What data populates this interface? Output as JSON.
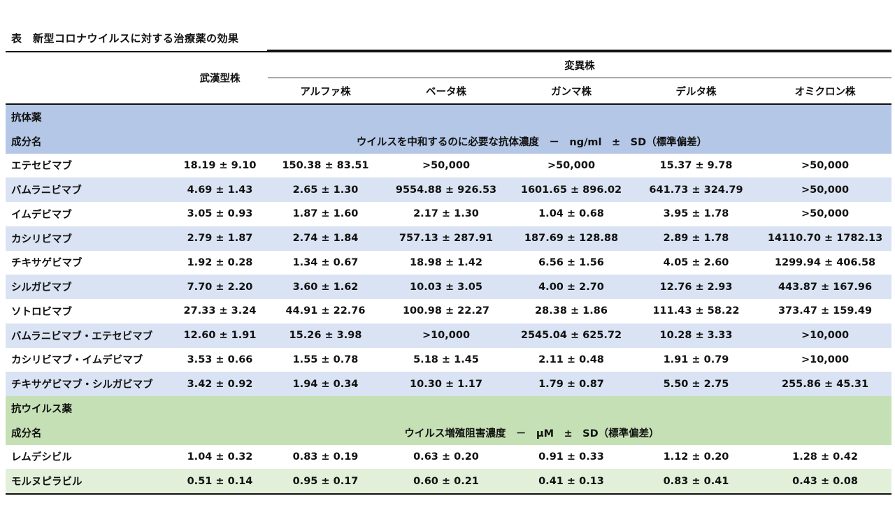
{
  "title": "表　新型コロナウイルスに対する治療薬の効果",
  "header": {
    "wuhan": "武漢型株",
    "variant": "変異株",
    "strains": [
      "アルファ株",
      "ベータ株",
      "ガンマ株",
      "デルタ株",
      "オミクロン株"
    ]
  },
  "antibody": {
    "section_label": "抗体薬",
    "name_label": "成分名",
    "unit_label": "ウイルスを中和するのに必要な抗体濃度　－　ng/ml　±　SD（標準偏差）",
    "rows": [
      {
        "name": "エテセビマブ",
        "values": [
          "18.19 ± 9.10",
          "150.38 ± 83.51",
          ">50,000",
          ">50,000",
          "15.37 ± 9.78",
          ">50,000"
        ]
      },
      {
        "name": "バムラニビマブ",
        "values": [
          "4.69 ± 1.43",
          "2.65 ± 1.30",
          "9554.88 ± 926.53",
          "1601.65 ± 896.02",
          "641.73 ± 324.79",
          ">50,000"
        ]
      },
      {
        "name": "イムデビマブ",
        "values": [
          "3.05 ± 0.93",
          "1.87 ± 1.60",
          "2.17 ± 1.30",
          "1.04 ± 0.68",
          "3.95 ± 1.78",
          ">50,000"
        ]
      },
      {
        "name": "カシリビマブ",
        "values": [
          "2.79 ± 1.87",
          "2.74 ± 1.84",
          "757.13 ± 287.91",
          "187.69 ± 128.88",
          "2.89 ± 1.78",
          "14110.70 ± 1782.13"
        ]
      },
      {
        "name": "チキサゲビマブ",
        "values": [
          "1.92 ± 0.28",
          "1.34 ± 0.67",
          "18.98 ± 1.42",
          "6.56 ± 1.56",
          "4.05 ± 2.60",
          "1299.94 ± 406.58"
        ]
      },
      {
        "name": "シルガビマブ",
        "values": [
          "7.70 ± 2.20",
          "3.60 ± 1.62",
          "10.03 ± 3.05",
          "4.00 ± 2.70",
          "12.76 ± 2.93",
          "443.87 ± 167.96"
        ]
      },
      {
        "name": "ソトロビマブ",
        "values": [
          "27.33 ± 3.24",
          "44.91 ± 22.76",
          "100.98 ± 22.27",
          "28.38 ± 1.86",
          "111.43 ± 58.22",
          "373.47 ± 159.49"
        ]
      },
      {
        "name": "バムラニビマブ・エテセビマブ",
        "values": [
          "12.60 ± 1.91",
          "15.26 ± 3.98",
          ">10,000",
          "2545.04 ± 625.72",
          "10.28 ± 3.33",
          ">10,000"
        ]
      },
      {
        "name": "カシリビマブ・イムデビマブ",
        "values": [
          "3.53 ± 0.66",
          "1.55 ± 0.78",
          "5.18 ± 1.45",
          "2.11 ± 0.48",
          "1.91 ± 0.79",
          ">10,000"
        ]
      },
      {
        "name": "チキサゲビマブ・シルガビマブ",
        "values": [
          "3.42 ± 0.92",
          "1.94 ± 0.34",
          "10.30 ± 1.17",
          "1.79 ± 0.87",
          "5.50 ± 2.75",
          "255.86 ± 45.31"
        ]
      }
    ]
  },
  "antiviral": {
    "section_label": "抗ウイルス薬",
    "name_label": "成分名",
    "unit_label": "ウイルス増殖阻害濃度　－　μM　±　SD（標準偏差）",
    "rows": [
      {
        "name": "レムデシビル",
        "values": [
          "1.04 ± 0.32",
          "0.83 ± 0.19",
          "0.63 ± 0.20",
          "0.91 ± 0.33",
          "1.12 ± 0.20",
          "1.28 ± 0.42"
        ]
      },
      {
        "name": "モルヌピラビル",
        "values": [
          "0.51 ± 0.14",
          "0.95 ± 0.17",
          "0.60 ± 0.21",
          "0.41 ± 0.13",
          "0.83 ± 0.41",
          "0.43 ± 0.08"
        ]
      }
    ]
  },
  "colors": {
    "antibody_section": "#b4c7e7",
    "antibody_stripe": "#dae3f3",
    "antiviral_section": "#c5e0b4",
    "antiviral_stripe": "#e2f0d9"
  }
}
